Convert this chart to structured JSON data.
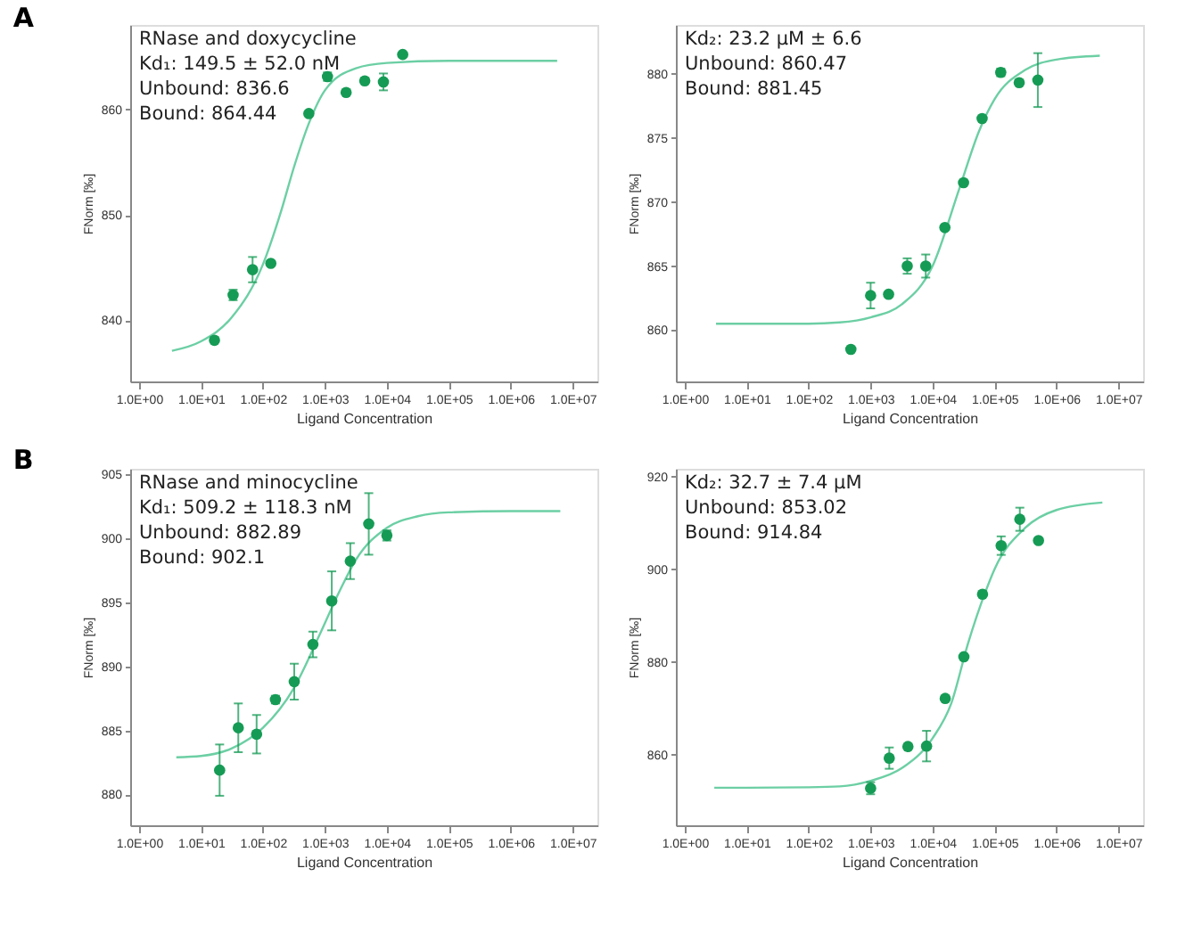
{
  "chart_data": [
    {
      "type": "scatter",
      "title": "A",
      "xlabel": "Ligand Concentration",
      "ylabel": "FNorm [‰]",
      "annotations": [
        "RNase and doxycycline",
        "Kd₁: 149.5 ± 52.0 nM",
        "Unbound: 836.6",
        "Bound: 864.44"
      ],
      "log": "x",
      "grid": false,
      "xlim": [
        0.72,
        25000000
      ],
      "xticks": [
        {
          "value": 1,
          "label": "1.0E+00"
        },
        {
          "value": 10,
          "label": "1.0E+01"
        },
        {
          "value": 100,
          "label": "1.0E+02"
        },
        {
          "value": 1000,
          "label": "1.0E+03"
        },
        {
          "value": 10000,
          "label": "1.0E+04"
        },
        {
          "value": 100000,
          "label": "1.0E+05"
        },
        {
          "value": 1000000,
          "label": "1.0E+06"
        },
        {
          "value": 10000000,
          "label": "1.0E+07"
        }
      ],
      "ylim": [
        834.2,
        868
      ],
      "yticks": [
        840,
        850,
        860
      ],
      "series": [
        {
          "type": "line",
          "marker": "none",
          "color": "#6ccfa4",
          "x": [
            3.4,
            10,
            31.6,
            100,
            200,
            316,
            562,
            1000,
            3162,
            10000,
            100000,
            1000000,
            5600000
          ],
          "values": [
            837.1,
            838.0,
            840.3,
            845.3,
            850.5,
            854.5,
            858.8,
            861.8,
            863.9,
            864.4,
            864.6,
            864.6,
            864.6
          ]
        },
        {
          "type": "scatter",
          "marker": "circle",
          "color": "#169b55",
          "x": [
            16.5,
            33,
            68,
            134,
            550,
            1100,
            2200,
            4400,
            8800,
            18000
          ],
          "values": [
            838.1,
            842.4,
            844.8,
            845.4,
            859.6,
            863.1,
            861.6,
            862.7,
            862.6,
            865.2
          ],
          "errors": [
            null,
            0.5,
            1.2,
            null,
            null,
            0.4,
            null,
            null,
            0.8,
            null
          ]
        }
      ]
    },
    {
      "type": "scatter",
      "xlabel": "Ligand Concentration",
      "ylabel": "FNorm [‰]",
      "annotations": [
        "Kd₂: 23.2 μM ± 6.6",
        "Unbound: 860.47",
        "Bound: 881.45"
      ],
      "log": "x",
      "grid": false,
      "xlim": [
        0.72,
        25000000
      ],
      "xticks": [
        {
          "value": 1,
          "label": "1.0E+00"
        },
        {
          "value": 10,
          "label": "1.0E+01"
        },
        {
          "value": 100,
          "label": "1.0E+02"
        },
        {
          "value": 1000,
          "label": "1.0E+03"
        },
        {
          "value": 10000,
          "label": "1.0E+04"
        },
        {
          "value": 100000,
          "label": "1.0E+05"
        },
        {
          "value": 1000000,
          "label": "1.0E+06"
        },
        {
          "value": 10000000,
          "label": "1.0E+07"
        }
      ],
      "ylim": [
        856,
        883.8
      ],
      "yticks": [
        860,
        865,
        870,
        875,
        880
      ],
      "series": [
        {
          "type": "line",
          "marker": "none",
          "color": "#6ccfa4",
          "x": [
            3.2,
            10,
            100,
            316,
            1000,
            3162,
            10000,
            26900,
            56000,
            100000,
            316000,
            1000000,
            5000000
          ],
          "values": [
            860.5,
            860.5,
            860.5,
            860.6,
            861.0,
            862.0,
            865.0,
            871.0,
            875.5,
            878.0,
            880.3,
            881.1,
            881.4
          ]
        },
        {
          "type": "scatter",
          "marker": "circle",
          "color": "#169b55",
          "x": [
            480,
            1000,
            1950,
            3900,
            7760,
            15800,
            31600,
            63000,
            126000,
            250000,
            500000
          ],
          "values": [
            858.5,
            862.7,
            862.8,
            865.0,
            865.0,
            868.0,
            871.5,
            876.5,
            880.1,
            879.3,
            879.5
          ],
          "errors": [
            null,
            1.0,
            null,
            0.6,
            0.9,
            null,
            null,
            null,
            0.3,
            null,
            2.1
          ]
        }
      ]
    },
    {
      "type": "scatter",
      "title": "B",
      "xlabel": "Ligand Concentration",
      "ylabel": "FNorm [‰]",
      "annotations": [
        "RNase and minocycline",
        "Kd₁: 509.2 ± 118.3 nM",
        "Unbound: 882.89",
        "Bound: 902.1"
      ],
      "log": "x",
      "grid": false,
      "xlim": [
        0.72,
        25000000
      ],
      "xticks": [
        {
          "value": 1,
          "label": "1.0E+00"
        },
        {
          "value": 10,
          "label": "1.0E+01"
        },
        {
          "value": 100,
          "label": "1.0E+02"
        },
        {
          "value": 1000,
          "label": "1.0E+03"
        },
        {
          "value": 10000,
          "label": "1.0E+04"
        },
        {
          "value": 100000,
          "label": "1.0E+05"
        },
        {
          "value": 1000000,
          "label": "1.0E+06"
        },
        {
          "value": 10000000,
          "label": "1.0E+07"
        }
      ],
      "ylim": [
        877.6,
        905.4
      ],
      "yticks": [
        880,
        885,
        890,
        895,
        900,
        905
      ],
      "series": [
        {
          "type": "line",
          "marker": "none",
          "color": "#6ccfa4",
          "x": [
            4,
            10,
            31.6,
            100,
            316,
            830,
            1780,
            3162,
            10000,
            31600,
            100000,
            1000000,
            6300000
          ],
          "values": [
            882.9,
            883.0,
            883.6,
            885.2,
            888.3,
            892.5,
            896.0,
            898.3,
            900.8,
            901.7,
            902.0,
            902.1,
            902.1
          ]
        },
        {
          "type": "scatter",
          "marker": "circle",
          "color": "#169b55",
          "x": [
            20,
            40,
            79,
            159,
            320,
            640,
            1290,
            2570,
            5100,
            10000
          ],
          "values": [
            881.9,
            885.2,
            884.7,
            887.4,
            888.8,
            891.7,
            895.1,
            898.2,
            901.1,
            900.2
          ],
          "errors": [
            2.0,
            1.9,
            1.5,
            0.3,
            1.4,
            1.0,
            2.3,
            1.4,
            2.4,
            0.4
          ]
        }
      ]
    },
    {
      "type": "scatter",
      "xlabel": "Ligand Concentration",
      "ylabel": "FNorm [‰]",
      "annotations": [
        "Kd₂: 32.7 ± 7.4 μM",
        "Unbound: 853.02",
        "Bound: 914.84"
      ],
      "log": "x",
      "grid": false,
      "xlim": [
        0.72,
        25000000
      ],
      "xticks": [
        {
          "value": 1,
          "label": "1.0E+00"
        },
        {
          "value": 10,
          "label": "1.0E+01"
        },
        {
          "value": 100,
          "label": "1.0E+02"
        },
        {
          "value": 1000,
          "label": "1.0E+03"
        },
        {
          "value": 10000,
          "label": "1.0E+04"
        },
        {
          "value": 100000,
          "label": "1.0E+05"
        },
        {
          "value": 1000000,
          "label": "1.0E+06"
        },
        {
          "value": 10000000,
          "label": "1.0E+07"
        }
      ],
      "ylim": [
        844.7,
        921.7
      ],
      "yticks": [
        860,
        880,
        900,
        920
      ],
      "series": [
        {
          "type": "line",
          "marker": "none",
          "color": "#6ccfa4",
          "x": [
            3,
            10,
            100,
            316,
            1000,
            3162,
            10000,
            20000,
            37200,
            70800,
            100000,
            316000,
            1000000,
            5500000
          ],
          "values": [
            852.8,
            852.8,
            852.9,
            853.1,
            854.3,
            857.0,
            863.5,
            871.0,
            883.9,
            895.0,
            900.0,
            909.0,
            912.8,
            914.4
          ]
        },
        {
          "type": "scatter",
          "marker": "circle",
          "color": "#169b55",
          "x": [
            1000,
            2000,
            4000,
            8000,
            16000,
            32000,
            64000,
            128000,
            256000,
            512000
          ],
          "values": [
            852.7,
            859.2,
            861.7,
            861.8,
            872.1,
            881.1,
            894.6,
            905.1,
            910.8,
            906.2
          ],
          "errors": [
            1.3,
            2.3,
            null,
            3.3,
            null,
            null,
            null,
            2.0,
            2.5,
            null
          ]
        }
      ]
    }
  ]
}
